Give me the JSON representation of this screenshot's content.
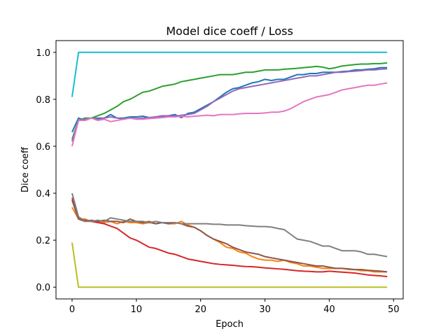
{
  "chart_data": {
    "type": "line",
    "title": "Model dice coeff / Loss",
    "xlabel": "Epoch",
    "ylabel": "Dice coeff",
    "xlim": [
      -2.5,
      51.5
    ],
    "ylim": [
      -0.05,
      1.05
    ],
    "xticks": [
      0,
      10,
      20,
      30,
      40,
      50
    ],
    "yticks": [
      0.0,
      0.2,
      0.4,
      0.6,
      0.8,
      1.0
    ],
    "ytick_labels": [
      "0.0",
      "0.2",
      "0.4",
      "0.6",
      "0.8",
      "1.0"
    ],
    "grid": false,
    "legend": false,
    "x": [
      0,
      1,
      2,
      3,
      4,
      5,
      6,
      7,
      8,
      9,
      10,
      11,
      12,
      13,
      14,
      15,
      16,
      17,
      18,
      19,
      20,
      21,
      22,
      23,
      24,
      25,
      26,
      27,
      28,
      29,
      30,
      31,
      32,
      33,
      34,
      35,
      36,
      37,
      38,
      39,
      40,
      41,
      42,
      43,
      44,
      45,
      46,
      47,
      48,
      49
    ],
    "series": [
      {
        "color": "#1f77b4",
        "values": [
          0.66,
          0.72,
          0.71,
          0.72,
          0.72,
          0.72,
          0.735,
          0.72,
          0.72,
          0.725,
          0.725,
          0.728,
          0.722,
          0.725,
          0.728,
          0.73,
          0.735,
          0.722,
          0.74,
          0.745,
          0.76,
          0.775,
          0.79,
          0.81,
          0.83,
          0.845,
          0.85,
          0.86,
          0.87,
          0.875,
          0.885,
          0.88,
          0.885,
          0.885,
          0.895,
          0.905,
          0.905,
          0.91,
          0.91,
          0.915,
          0.915,
          0.915,
          0.918,
          0.92,
          0.925,
          0.925,
          0.928,
          0.93,
          0.935,
          0.935
        ]
      },
      {
        "color": "#ff7f0e",
        "values": [
          0.34,
          0.29,
          0.29,
          0.28,
          0.28,
          0.275,
          0.28,
          0.27,
          0.28,
          0.275,
          0.275,
          0.27,
          0.275,
          0.27,
          0.275,
          0.27,
          0.27,
          0.28,
          0.265,
          0.255,
          0.24,
          0.22,
          0.205,
          0.19,
          0.17,
          0.165,
          0.15,
          0.145,
          0.13,
          0.12,
          0.115,
          0.115,
          0.11,
          0.115,
          0.105,
          0.1,
          0.09,
          0.09,
          0.085,
          0.08,
          0.08,
          0.08,
          0.08,
          0.075,
          0.075,
          0.07,
          0.07,
          0.065,
          0.065,
          0.065
        ]
      },
      {
        "color": "#2ca02c",
        "values": [
          0.63,
          0.71,
          0.72,
          0.72,
          0.73,
          0.74,
          0.755,
          0.77,
          0.79,
          0.8,
          0.815,
          0.83,
          0.835,
          0.845,
          0.855,
          0.86,
          0.865,
          0.875,
          0.88,
          0.885,
          0.89,
          0.895,
          0.9,
          0.905,
          0.905,
          0.905,
          0.91,
          0.915,
          0.915,
          0.92,
          0.925,
          0.925,
          0.925,
          0.928,
          0.93,
          0.932,
          0.935,
          0.937,
          0.94,
          0.937,
          0.93,
          0.935,
          0.942,
          0.945,
          0.948,
          0.95,
          0.95,
          0.952,
          0.952,
          0.955
        ]
      },
      {
        "color": "#d62728",
        "values": [
          0.38,
          0.29,
          0.285,
          0.28,
          0.275,
          0.27,
          0.26,
          0.25,
          0.23,
          0.21,
          0.2,
          0.185,
          0.17,
          0.165,
          0.155,
          0.145,
          0.14,
          0.13,
          0.12,
          0.115,
          0.11,
          0.105,
          0.1,
          0.097,
          0.095,
          0.093,
          0.09,
          0.088,
          0.087,
          0.085,
          0.082,
          0.08,
          0.078,
          0.076,
          0.073,
          0.07,
          0.068,
          0.067,
          0.065,
          0.065,
          0.068,
          0.066,
          0.064,
          0.062,
          0.06,
          0.056,
          0.052,
          0.05,
          0.048,
          0.045
        ]
      },
      {
        "color": "#9467bd",
        "values": [
          0.62,
          0.71,
          0.715,
          0.72,
          0.715,
          0.72,
          0.725,
          0.72,
          0.715,
          0.72,
          0.718,
          0.72,
          0.722,
          0.725,
          0.73,
          0.73,
          0.728,
          0.732,
          0.735,
          0.74,
          0.755,
          0.77,
          0.79,
          0.805,
          0.82,
          0.835,
          0.845,
          0.85,
          0.855,
          0.86,
          0.865,
          0.87,
          0.875,
          0.88,
          0.885,
          0.89,
          0.895,
          0.9,
          0.9,
          0.905,
          0.91,
          0.915,
          0.915,
          0.918,
          0.92,
          0.922,
          0.925,
          0.925,
          0.928,
          0.93
        ]
      },
      {
        "color": "#8c564b",
        "values": [
          0.37,
          0.29,
          0.28,
          0.285,
          0.28,
          0.285,
          0.28,
          0.28,
          0.275,
          0.29,
          0.28,
          0.275,
          0.28,
          0.27,
          0.275,
          0.27,
          0.275,
          0.27,
          0.26,
          0.255,
          0.24,
          0.22,
          0.205,
          0.195,
          0.185,
          0.17,
          0.16,
          0.15,
          0.145,
          0.14,
          0.13,
          0.125,
          0.12,
          0.115,
          0.11,
          0.105,
          0.1,
          0.095,
          0.09,
          0.09,
          0.085,
          0.08,
          0.08,
          0.078,
          0.075,
          0.075,
          0.072,
          0.07,
          0.068,
          0.065
        ]
      },
      {
        "color": "#e377c2",
        "values": [
          0.6,
          0.71,
          0.71,
          0.72,
          0.71,
          0.715,
          0.705,
          0.71,
          0.715,
          0.72,
          0.715,
          0.715,
          0.718,
          0.72,
          0.722,
          0.725,
          0.725,
          0.728,
          0.725,
          0.728,
          0.73,
          0.732,
          0.73,
          0.735,
          0.735,
          0.735,
          0.738,
          0.74,
          0.74,
          0.74,
          0.742,
          0.745,
          0.745,
          0.75,
          0.76,
          0.775,
          0.79,
          0.8,
          0.81,
          0.815,
          0.82,
          0.83,
          0.84,
          0.845,
          0.85,
          0.855,
          0.86,
          0.86,
          0.865,
          0.87
        ]
      },
      {
        "color": "#7f7f7f",
        "values": [
          0.4,
          0.3,
          0.28,
          0.28,
          0.285,
          0.28,
          0.295,
          0.29,
          0.285,
          0.28,
          0.28,
          0.28,
          0.275,
          0.28,
          0.275,
          0.275,
          0.275,
          0.27,
          0.27,
          0.27,
          0.27,
          0.27,
          0.268,
          0.268,
          0.265,
          0.265,
          0.265,
          0.262,
          0.26,
          0.258,
          0.258,
          0.256,
          0.25,
          0.245,
          0.225,
          0.205,
          0.2,
          0.195,
          0.185,
          0.175,
          0.175,
          0.165,
          0.155,
          0.155,
          0.155,
          0.15,
          0.14,
          0.14,
          0.135,
          0.13
        ]
      },
      {
        "color": "#bcbd22",
        "values": [
          0.19,
          0.0,
          0.0,
          0.0,
          0.0,
          0.0,
          0.0,
          0.0,
          0.0,
          0.0,
          0.0,
          0.0,
          0.0,
          0.0,
          0.0,
          0.0,
          0.0,
          0.0,
          0.0,
          0.0,
          0.0,
          0.0,
          0.0,
          0.0,
          0.0,
          0.0,
          0.0,
          0.0,
          0.0,
          0.0,
          0.0,
          0.0,
          0.0,
          0.0,
          0.0,
          0.0,
          0.0,
          0.0,
          0.0,
          0.0,
          0.0,
          0.0,
          0.0,
          0.0,
          0.0,
          0.0,
          0.0,
          0.0,
          0.0,
          0.0
        ]
      },
      {
        "color": "#17becf",
        "values": [
          0.81,
          1.0,
          1.0,
          1.0,
          1.0,
          1.0,
          1.0,
          1.0,
          1.0,
          1.0,
          1.0,
          1.0,
          1.0,
          1.0,
          1.0,
          1.0,
          1.0,
          1.0,
          1.0,
          1.0,
          1.0,
          1.0,
          1.0,
          1.0,
          1.0,
          1.0,
          1.0,
          1.0,
          1.0,
          1.0,
          1.0,
          1.0,
          1.0,
          1.0,
          1.0,
          1.0,
          1.0,
          1.0,
          1.0,
          1.0,
          1.0,
          1.0,
          1.0,
          1.0,
          1.0,
          1.0,
          1.0,
          1.0,
          1.0,
          1.0
        ]
      }
    ]
  }
}
